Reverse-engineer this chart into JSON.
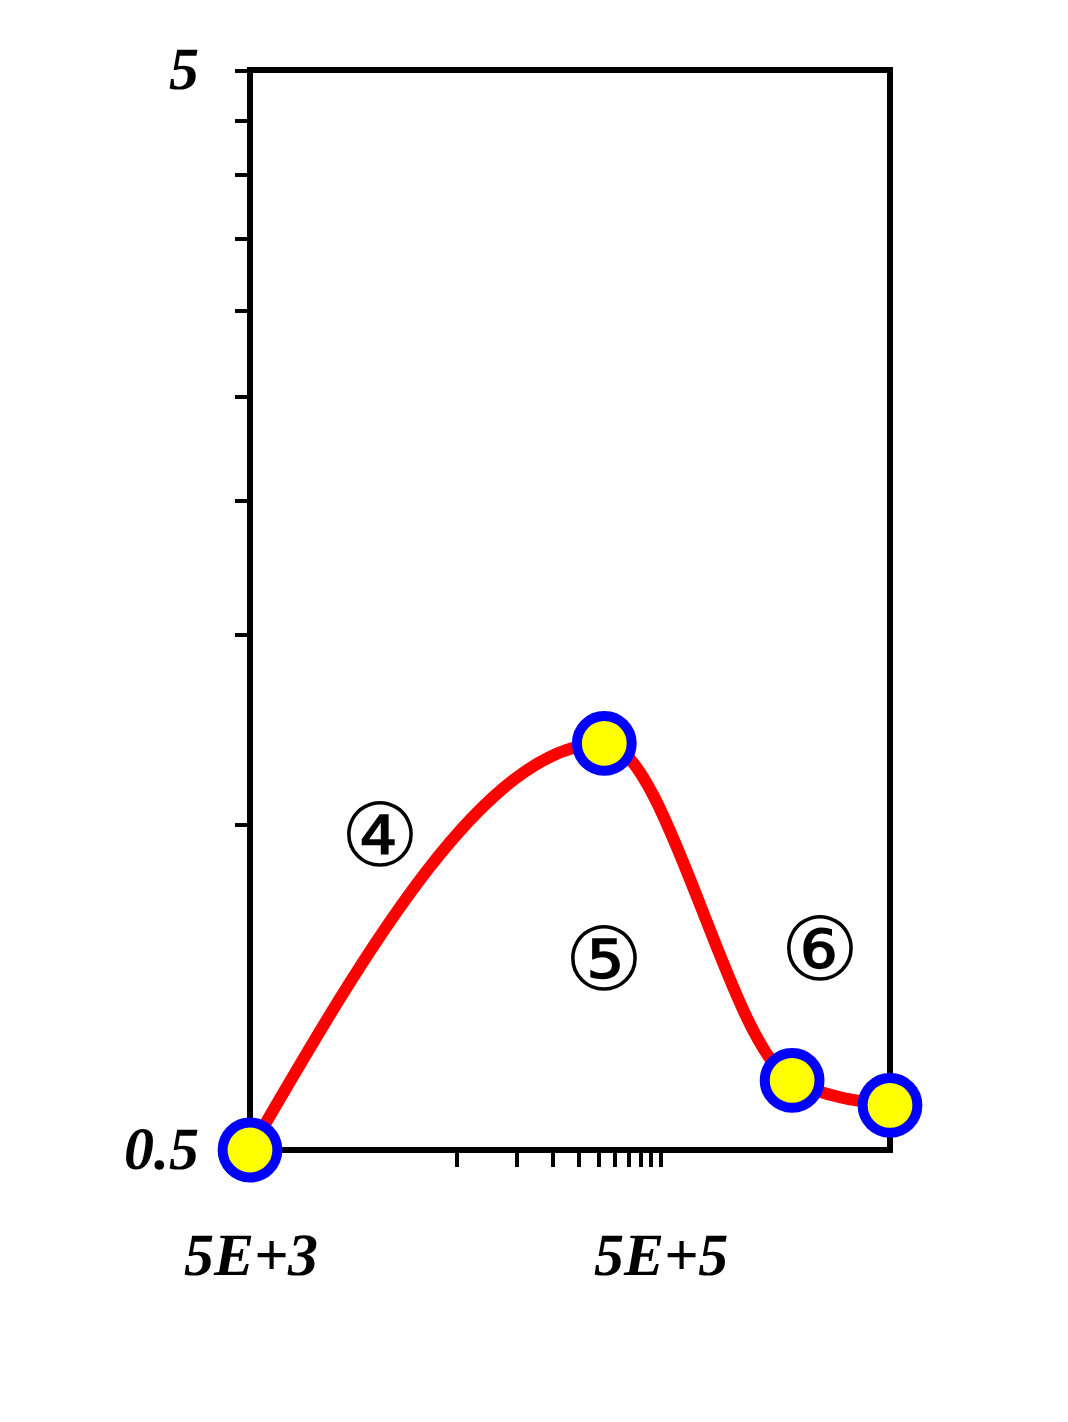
{
  "chart_data": {
    "type": "line",
    "log": "xy",
    "x": [
      5000,
      267000,
      2200000,
      6600000
    ],
    "series": [
      {
        "color": "#ff0000",
        "values": [
          0.5,
          1.19,
          0.58,
          0.55
        ]
      }
    ],
    "xlim": [
      5000,
      6600000
    ],
    "xticks": [
      {
        "value": 5000,
        "label": "5E+3"
      },
      {
        "value": 50000,
        "label": null
      },
      {
        "value": 100000,
        "label": null
      },
      {
        "value": 150000,
        "label": null
      },
      {
        "value": 200000,
        "label": null
      },
      {
        "value": 250000,
        "label": null
      },
      {
        "value": 300000,
        "label": null
      },
      {
        "value": 350000,
        "label": null
      },
      {
        "value": 400000,
        "label": null
      },
      {
        "value": 450000,
        "label": null
      },
      {
        "value": 500000,
        "label": "5E+5"
      }
    ],
    "ylim": [
      0.5,
      5
    ],
    "yticks": [
      0.5,
      {
        "value": 1,
        "label": null
      },
      {
        "value": 1.5,
        "label": null
      },
      {
        "value": 2,
        "label": null
      },
      {
        "value": 2.5,
        "label": null
      },
      {
        "value": 3,
        "label": null
      },
      {
        "value": 3.5,
        "label": null
      },
      {
        "value": 4,
        "label": null
      },
      {
        "value": 4.5,
        "label": null
      },
      5
    ],
    "marker": "circle",
    "grid": false,
    "annotations": [
      "④",
      "⑤",
      "⑥"
    ]
  }
}
